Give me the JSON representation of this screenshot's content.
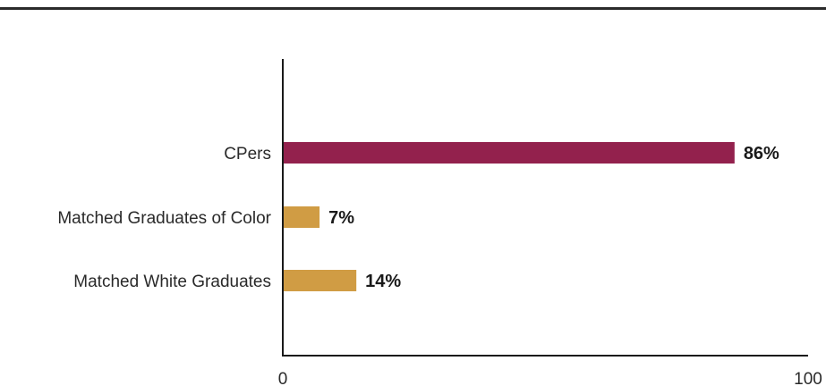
{
  "chart_data": {
    "type": "bar",
    "orientation": "horizontal",
    "categories": [
      "CPers",
      "Matched Graduates of Color",
      "Matched White Graduates"
    ],
    "values": [
      86,
      7,
      14
    ],
    "value_labels": [
      "86%",
      "7%",
      "14%"
    ],
    "colors": [
      "#93214d",
      "#d09c44",
      "#d09c44"
    ],
    "xlim": [
      0,
      100
    ],
    "x_ticks": [
      "0",
      "100"
    ],
    "title": "",
    "xlabel": "",
    "ylabel": "",
    "grid": false
  }
}
